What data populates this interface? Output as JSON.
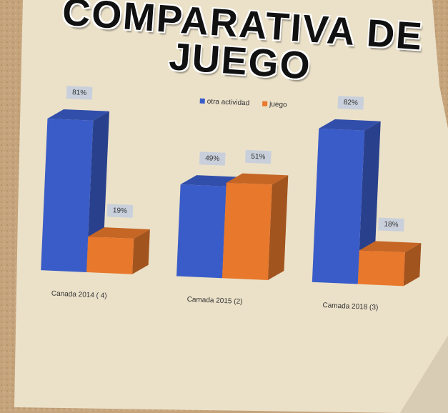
{
  "chart_data": {
    "type": "bar3d",
    "title": "COMPARATIVA DE JUEGO",
    "categories": [
      "Canada 2014 ( 4)",
      "Camada 2015 (2)",
      "Camada 2018 (3)"
    ],
    "series": [
      {
        "name": "otra actividad",
        "color": "#3a5cc8",
        "values": [
          81,
          49,
          82
        ],
        "value_labels": [
          "81%",
          "49%",
          "82%"
        ]
      },
      {
        "name": "juego",
        "color": "#e8782c",
        "values": [
          19,
          51,
          18
        ],
        "value_labels": [
          "19%",
          "51%",
          "18%"
        ]
      }
    ],
    "legend": "top"
  }
}
